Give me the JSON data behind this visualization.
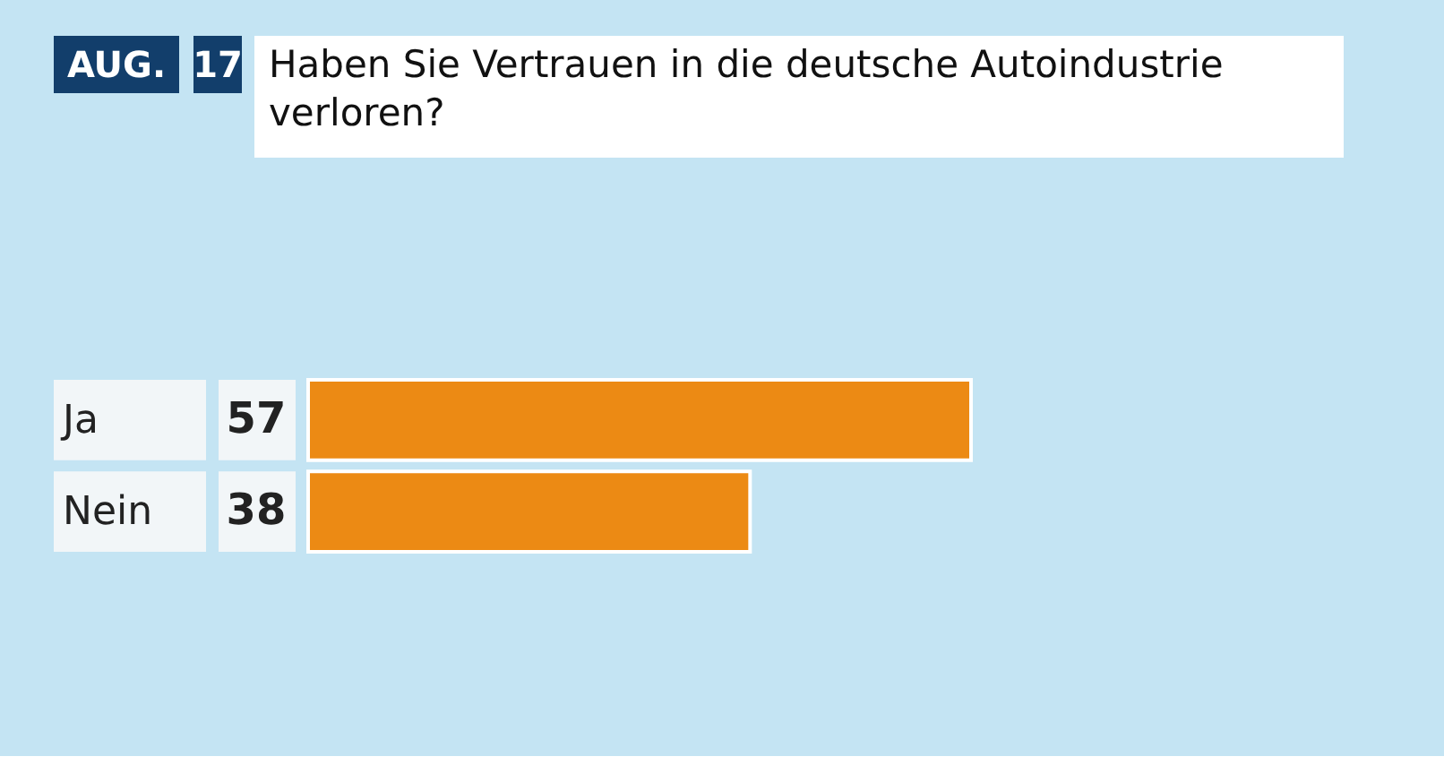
{
  "chart_data": {
    "type": "bar",
    "orientation": "horizontal",
    "title": "Haben Sie Vertrauen in die deutsche Autoindustrie verloren?",
    "annotations": [
      "AUG.",
      "17"
    ],
    "categories": [
      "Ja",
      "Nein"
    ],
    "values": [
      57,
      38
    ],
    "color": "#ec8a14",
    "data_labels": true
  }
}
